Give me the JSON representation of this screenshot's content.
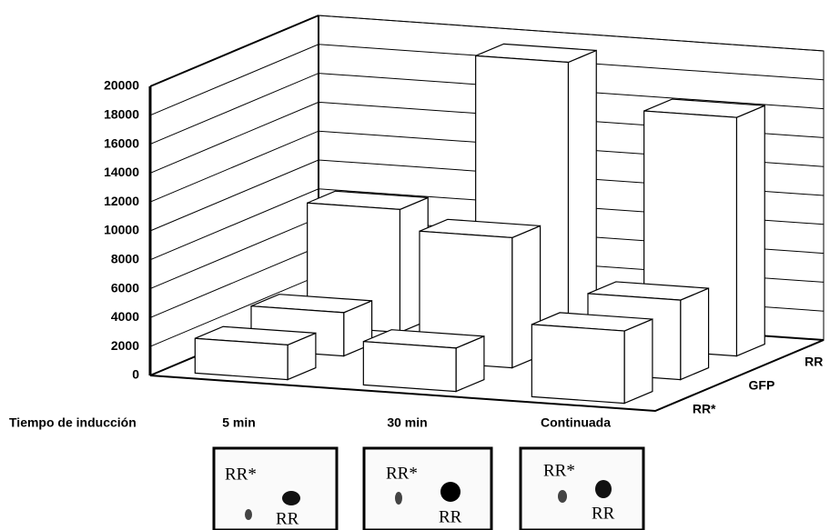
{
  "chart_data": {
    "type": "bar3d",
    "x_label": "Tiempo de inducción",
    "categories": [
      "5 min",
      "30 min",
      "Continuada"
    ],
    "series": [
      {
        "name": "RR*",
        "color": "#ffffff",
        "values": [
          2400,
          3000,
          5000
        ]
      },
      {
        "name": "GFP",
        "color": "#ffffff",
        "values": [
          3000,
          9000,
          5500
        ]
      },
      {
        "name": "RR",
        "color": "#ffffff",
        "values": [
          8500,
          19500,
          16500
        ]
      }
    ],
    "ylim": [
      0,
      20000
    ],
    "yticks": [
      0,
      2000,
      4000,
      6000,
      8000,
      10000,
      12000,
      14000,
      16000,
      18000,
      20000
    ],
    "grid": true
  },
  "blots": [
    {
      "upper": "RR*",
      "lower": "RR"
    },
    {
      "upper": "RR*",
      "lower": "RR"
    },
    {
      "upper": "RR*",
      "lower": "RR"
    }
  ]
}
